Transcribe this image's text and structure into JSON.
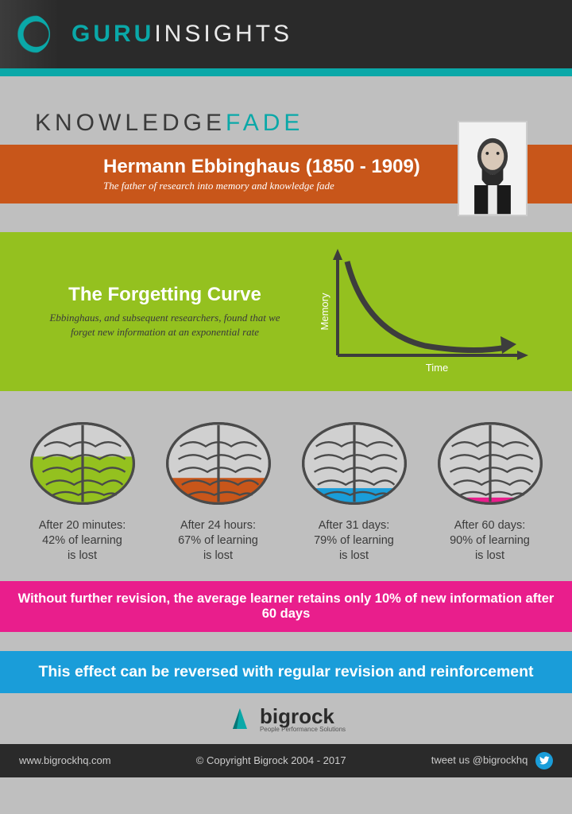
{
  "header": {
    "brand_prefix": "GURU",
    "brand_suffix": "INSIGHTS"
  },
  "knowledge": {
    "word1": "KNOWLEDGE",
    "word2": "FADE"
  },
  "ebbinghaus": {
    "title": "Hermann Ebbinghaus (1850 - 1909)",
    "subtitle": "The father of research into memory and knowledge fade"
  },
  "forgetting": {
    "title": "The Forgetting Curve",
    "subtitle": "Ebbinghaus, and subsequent researchers, found that we forget new information at an exponential rate",
    "x_label": "Time",
    "y_label": "Memory",
    "axis_color": "#3d3d3d",
    "curve_color": "#3d3d3d"
  },
  "brains": [
    {
      "fill_ratio": 0.58,
      "fill_color": "#94c11f",
      "line1": "After 20 minutes:",
      "line2": "42% of learning",
      "line3": "is lost"
    },
    {
      "fill_ratio": 0.33,
      "fill_color": "#c8561a",
      "line1": "After 24 hours:",
      "line2": "67% of learning",
      "line3": "is lost"
    },
    {
      "fill_ratio": 0.21,
      "fill_color": "#1a9dd9",
      "line1": "After 31 days:",
      "line2": "79% of learning",
      "line3": "is lost"
    },
    {
      "fill_ratio": 0.1,
      "fill_color": "#e91e8c",
      "line1": "After 60 days:",
      "line2": "90% of learning",
      "line3": "is lost"
    }
  ],
  "pink_text": "Without further revision, the average learner retains only 10% of new information after 60 days",
  "blue_text": "This effect can be reversed with regular revision and reinforcement",
  "footer_logo": {
    "name": "bigrock",
    "tagline": "People Performance Solutions"
  },
  "footer": {
    "url": "www.bigrockhq.com",
    "copyright": "© Copyright Bigrock 2004 - 2017",
    "tweet": "tweet us @bigrockhq"
  },
  "colors": {
    "teal": "#0aa8a8",
    "orange": "#c8561a",
    "green": "#94c11f",
    "pink": "#e91e8c",
    "blue": "#1a9dd9",
    "dark": "#2a2a2a",
    "gray_bg": "#bfbfbf",
    "brain_outline": "#4a4a4a",
    "brain_fill": "#d0d0d0"
  }
}
